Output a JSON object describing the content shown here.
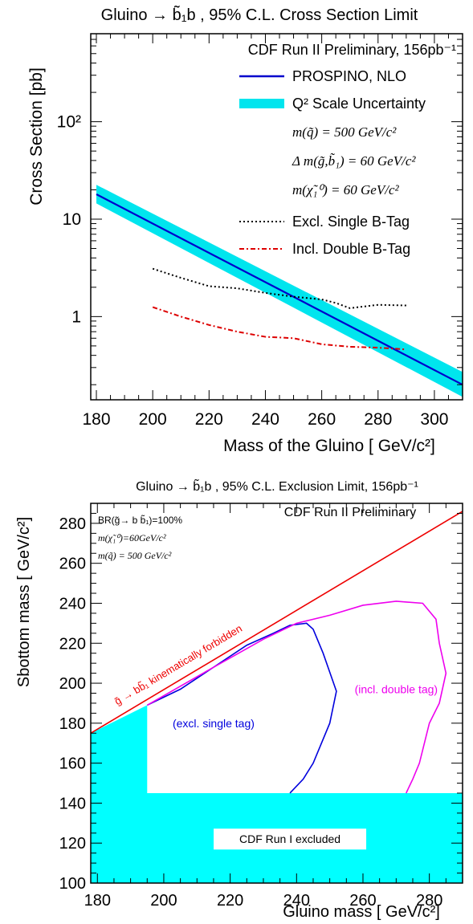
{
  "chart_data": [
    {
      "type": "line",
      "title": "Gluino → b̃₁b , 95% C.L. Cross Section Limit",
      "xlabel": "Mass of the Gluino [ GeV/c²]",
      "ylabel": "Cross Section [pb]",
      "x_scale": "linear",
      "y_scale": "log",
      "xlim": [
        178,
        310
      ],
      "ylim": [
        0.14,
        800
      ],
      "x_ticks": [
        180,
        200,
        220,
        240,
        260,
        280,
        300
      ],
      "x_tick_labels": [
        "180",
        "200",
        "220",
        "240",
        "260",
        "280",
        "300"
      ],
      "y_ticks": [
        1,
        10,
        100
      ],
      "y_tick_labels": [
        "1",
        "10",
        "10²"
      ],
      "legend_placement": "top-right",
      "legend_header": "CDF Run II Preliminary, 156pb⁻¹",
      "annotations": [
        "m(q̃) = 500 GeV/c²",
        "Δ m(g̃,b̃₁) = 60 GeV/c²",
        "m(χ̃₁⁰) = 60 GeV/c²"
      ],
      "series": [
        {
          "name": "PROSPINO, NLO",
          "color": "#0000cc",
          "style": "solid",
          "x": [
            180,
            310
          ],
          "y": [
            18,
            0.2
          ]
        },
        {
          "name": "Q² Scale Uncertainty",
          "color": "#00e5ee",
          "style": "band",
          "x": [
            180,
            310
          ],
          "y_low": [
            14.5,
            0.15
          ],
          "y_high": [
            22.5,
            0.27
          ]
        },
        {
          "name": "Excl. Single B-Tag",
          "color": "#000000",
          "style": "dotted",
          "x": [
            200,
            210,
            220,
            230,
            240,
            250,
            260,
            265,
            270,
            280,
            290
          ],
          "y": [
            3.1,
            2.5,
            2.05,
            1.95,
            1.75,
            1.6,
            1.5,
            1.38,
            1.22,
            1.32,
            1.3
          ]
        },
        {
          "name": "Incl. Double B-Tag",
          "color": "#dd0000",
          "style": "dashdot",
          "x": [
            200,
            210,
            220,
            230,
            240,
            250,
            260,
            270,
            280,
            290
          ],
          "y": [
            1.25,
            1.0,
            0.82,
            0.7,
            0.62,
            0.6,
            0.52,
            0.49,
            0.48,
            0.46
          ]
        }
      ]
    },
    {
      "type": "area",
      "title": "Gluino → b̃₁b , 95% C.L. Exclusion Limit, 156pb⁻¹",
      "xlabel": "Gluino mass [ GeV/c²]",
      "ylabel": "Sbottom mass [ GeV/c²]",
      "xlim": [
        178,
        290
      ],
      "ylim": [
        100,
        290
      ],
      "x_ticks": [
        180,
        200,
        220,
        240,
        260,
        280
      ],
      "x_tick_labels": [
        "180",
        "200",
        "220",
        "240",
        "260",
        "280"
      ],
      "y_ticks": [
        100,
        120,
        140,
        160,
        180,
        200,
        220,
        240,
        260,
        280
      ],
      "y_tick_labels": [
        "100",
        "120",
        "140",
        "160",
        "180",
        "200",
        "220",
        "240",
        "260",
        "280"
      ],
      "header_text": "CDF Run II Preliminary",
      "annotations": [
        "BR(g̃→ b b̃₁)=100%",
        "m(χ̃₁⁰)=60GeV/c²",
        "m(q̃) = 500 GeV/c²"
      ],
      "forbidden_line": {
        "label": "g̃ → bb̃₁ kinematically forbidden",
        "color": "#ee0000",
        "x": [
          178,
          290
        ],
        "y": [
          175,
          286
        ]
      },
      "run1_region": {
        "label": "CDF Run I excluded",
        "color": "#00ffff",
        "x": [
          178,
          178,
          195,
          195,
          290,
          290
        ],
        "y": [
          100,
          175,
          189,
          145,
          145,
          100
        ]
      },
      "series": [
        {
          "name": "(excl. single tag)",
          "color": "#0000dd",
          "x": [
            195,
            205,
            215,
            225,
            233,
            238,
            243,
            245,
            248,
            252,
            250,
            245,
            242,
            238
          ],
          "y": [
            189,
            197,
            208,
            219,
            225,
            229,
            230,
            227,
            215,
            196,
            180,
            160,
            152,
            145
          ]
        },
        {
          "name": "(incl. double tag)",
          "color": "#ee00ee",
          "x": [
            195,
            215,
            230,
            240,
            250,
            260,
            270,
            278,
            282,
            283,
            285,
            283,
            280,
            277,
            275,
            273
          ],
          "y": [
            189,
            208,
            222,
            230,
            234,
            239,
            241,
            240,
            232,
            220,
            205,
            190,
            180,
            160,
            152,
            145
          ]
        }
      ]
    }
  ]
}
